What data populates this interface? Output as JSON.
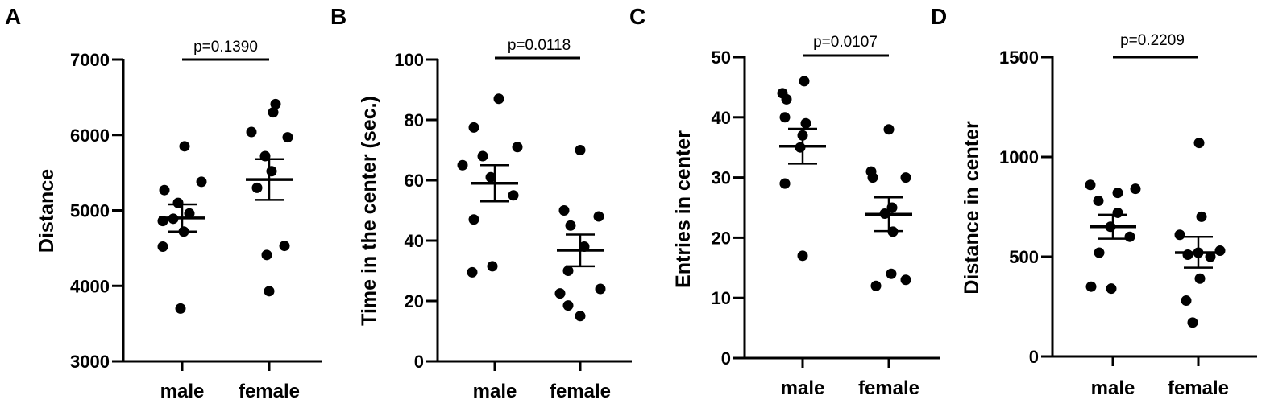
{
  "chart_data": [
    {
      "panel": "A",
      "type": "scatter",
      "ylabel": "Distance",
      "ylim": [
        3000,
        7000
      ],
      "yticks": [
        3000,
        4000,
        5000,
        6000,
        7000
      ],
      "categories": [
        "male",
        "female"
      ],
      "groups": [
        {
          "name": "male",
          "values": [
            5850,
            5270,
            5380,
            5100,
            4960,
            4890,
            4860,
            4720,
            4520,
            3700
          ],
          "mean": 4900,
          "sem_low": 4720,
          "sem_high": 5080
        },
        {
          "name": "female",
          "values": [
            6410,
            6300,
            6040,
            5970,
            5720,
            5520,
            5300,
            4530,
            4410,
            3930
          ],
          "mean": 5410,
          "sem_low": 5140,
          "sem_high": 5680
        }
      ],
      "comparison": {
        "label": "p=0.1390"
      }
    },
    {
      "panel": "B",
      "type": "scatter",
      "ylabel": "Time in the center (sec.)",
      "ylim": [
        0,
        100
      ],
      "yticks": [
        0,
        20,
        40,
        60,
        80,
        100
      ],
      "categories": [
        "male",
        "female"
      ],
      "groups": [
        {
          "name": "male",
          "values": [
            87,
            77.5,
            71,
            68,
            61,
            55,
            47,
            31.5,
            29.5,
            65
          ],
          "mean": 59,
          "sem_low": 53,
          "sem_high": 65
        },
        {
          "name": "female",
          "values": [
            70,
            50,
            48,
            45,
            38,
            30,
            24,
            22.5,
            18.5,
            15
          ],
          "mean": 36.8,
          "sem_low": 31.5,
          "sem_high": 42
        },
        {
          "name": "_",
          "values": []
        }
      ],
      "comparison": {
        "label": "p=0.0118"
      }
    },
    {
      "panel": "C",
      "type": "scatter",
      "ylabel": "Entries in center",
      "ylim": [
        0,
        50
      ],
      "yticks": [
        0,
        10,
        20,
        30,
        40,
        50
      ],
      "categories": [
        "male",
        "female"
      ],
      "groups": [
        {
          "name": "male",
          "values": [
            46,
            44,
            43,
            40,
            39,
            37,
            35,
            29,
            29,
            17
          ],
          "mean": 35.2,
          "sem_low": 32.3,
          "sem_high": 38.1
        },
        {
          "name": "female",
          "values": [
            38,
            31,
            30,
            30,
            25,
            24,
            14,
            13,
            12,
            21
          ],
          "mean": 23.9,
          "sem_low": 21.1,
          "sem_high": 26.7
        }
      ],
      "comparison": {
        "label": "p=0.0107"
      }
    },
    {
      "panel": "D",
      "type": "scatter",
      "ylabel": "Distance in center",
      "ylim": [
        0,
        1500
      ],
      "yticks": [
        0,
        500,
        1000,
        1500
      ],
      "categories": [
        "male",
        "female"
      ],
      "groups": [
        {
          "name": "male",
          "values": [
            860,
            840,
            820,
            780,
            720,
            650,
            600,
            520,
            350,
            340
          ],
          "mean": 650,
          "sem_low": 590,
          "sem_high": 710
        },
        {
          "name": "female",
          "values": [
            1070,
            700,
            610,
            530,
            520,
            510,
            500,
            390,
            280,
            170
          ],
          "mean": 520,
          "sem_low": 445,
          "sem_high": 600
        }
      ],
      "comparison": {
        "label": "p=0.2209"
      }
    }
  ]
}
